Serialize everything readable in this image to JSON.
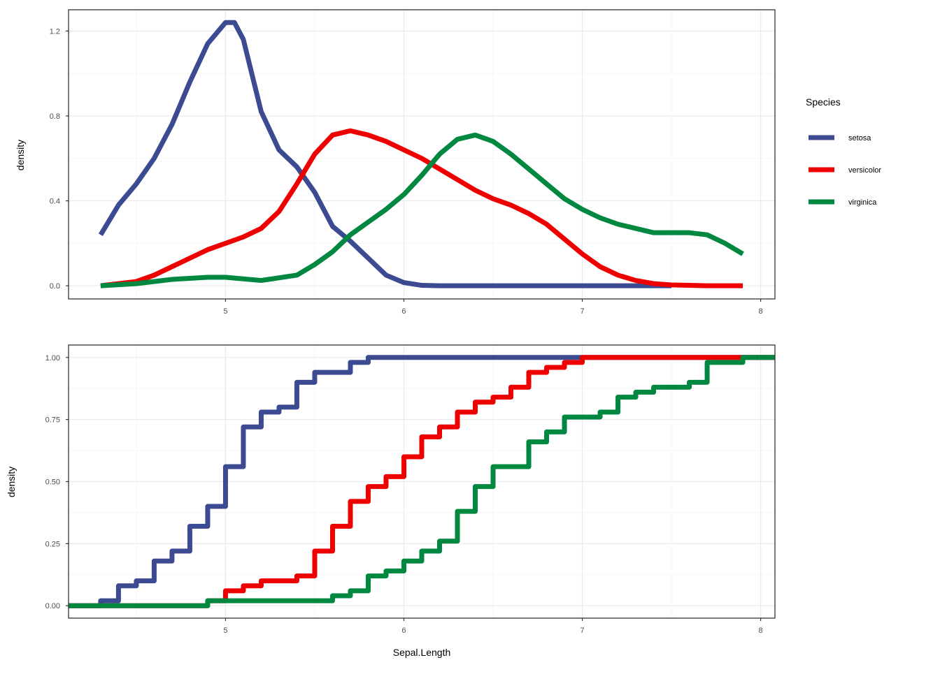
{
  "colors": {
    "setosa": "#3c4b91",
    "versicolor": "#ee0000",
    "virginica": "#008740",
    "grid_major": "#ebebeb",
    "grid_minor": "#f5f5f5",
    "panel_border": "#333333"
  },
  "legend": {
    "title": "Species",
    "position": "right",
    "items": [
      {
        "label": "setosa",
        "color": "#3c4b91"
      },
      {
        "label": "versicolor",
        "color": "#ee0000"
      },
      {
        "label": "virginica",
        "color": "#008740"
      }
    ]
  },
  "chart_data": [
    {
      "type": "line",
      "title": "",
      "xlabel": "",
      "ylabel": "density",
      "xlim": [
        4.12,
        8.08
      ],
      "ylim": [
        -0.062,
        1.3
      ],
      "x_ticks": [
        5,
        6,
        7,
        8
      ],
      "x_tick_labels": [
        "5",
        "6",
        "7",
        "8"
      ],
      "y_ticks": [
        0,
        0.4,
        0.8,
        1.2
      ],
      "y_tick_labels": [
        "0.0",
        "0.4",
        "0.8",
        "1.2"
      ],
      "grid": true,
      "series": [
        {
          "name": "setosa",
          "x": [
            4.3,
            4.4,
            4.5,
            4.6,
            4.7,
            4.8,
            4.9,
            5.0,
            5.05,
            5.1,
            5.2,
            5.3,
            5.4,
            5.5,
            5.6,
            5.7,
            5.8,
            5.9,
            6.0,
            6.1,
            6.2,
            7.0,
            7.5
          ],
          "y": [
            0.24,
            0.38,
            0.48,
            0.6,
            0.76,
            0.96,
            1.14,
            1.24,
            1.24,
            1.16,
            0.82,
            0.64,
            0.56,
            0.44,
            0.28,
            0.21,
            0.13,
            0.05,
            0.015,
            0.002,
            0.0,
            0.0,
            0.0
          ]
        },
        {
          "name": "versicolor",
          "x": [
            4.3,
            4.5,
            4.6,
            4.7,
            4.8,
            4.9,
            5.0,
            5.1,
            5.2,
            5.3,
            5.4,
            5.5,
            5.6,
            5.7,
            5.8,
            5.9,
            6.0,
            6.1,
            6.2,
            6.3,
            6.4,
            6.5,
            6.6,
            6.7,
            6.8,
            6.9,
            7.0,
            7.1,
            7.2,
            7.3,
            7.4,
            7.5,
            7.6,
            7.7,
            7.8,
            7.9
          ],
          "y": [
            0.0,
            0.02,
            0.05,
            0.09,
            0.13,
            0.17,
            0.2,
            0.23,
            0.27,
            0.35,
            0.48,
            0.62,
            0.71,
            0.73,
            0.71,
            0.68,
            0.64,
            0.6,
            0.55,
            0.5,
            0.45,
            0.41,
            0.38,
            0.34,
            0.29,
            0.22,
            0.15,
            0.09,
            0.05,
            0.025,
            0.01,
            0.004,
            0.002,
            0.0,
            0.0,
            0.0
          ]
        },
        {
          "name": "virginica",
          "x": [
            4.3,
            4.5,
            4.7,
            4.9,
            5.0,
            5.2,
            5.4,
            5.5,
            5.6,
            5.7,
            5.8,
            5.9,
            6.0,
            6.1,
            6.2,
            6.3,
            6.4,
            6.5,
            6.6,
            6.7,
            6.8,
            6.9,
            7.0,
            7.1,
            7.2,
            7.3,
            7.4,
            7.5,
            7.6,
            7.7,
            7.8,
            7.9
          ],
          "y": [
            0.0,
            0.01,
            0.03,
            0.04,
            0.04,
            0.025,
            0.05,
            0.1,
            0.16,
            0.24,
            0.3,
            0.36,
            0.43,
            0.52,
            0.62,
            0.69,
            0.71,
            0.68,
            0.62,
            0.55,
            0.48,
            0.41,
            0.36,
            0.32,
            0.29,
            0.27,
            0.25,
            0.25,
            0.25,
            0.24,
            0.2,
            0.15
          ]
        }
      ]
    },
    {
      "type": "line",
      "title": "",
      "xlabel": "Sepal.Length",
      "ylabel": "density",
      "xlim": [
        4.12,
        8.08
      ],
      "ylim": [
        -0.05,
        1.05
      ],
      "x_ticks": [
        5,
        6,
        7,
        8
      ],
      "x_tick_labels": [
        "5",
        "6",
        "7",
        "8"
      ],
      "y_ticks": [
        0,
        0.25,
        0.5,
        0.75,
        1.0
      ],
      "y_tick_labels": [
        "0.00",
        "0.25",
        "0.50",
        "0.75",
        "1.00"
      ],
      "grid": true,
      "step": true,
      "series": [
        {
          "name": "setosa",
          "x": [
            4.12,
            4.3,
            4.4,
            4.5,
            4.6,
            4.7,
            4.8,
            4.9,
            5.0,
            5.1,
            5.2,
            5.3,
            5.4,
            5.5,
            5.7,
            5.8,
            8.08
          ],
          "y": [
            0.0,
            0.02,
            0.08,
            0.1,
            0.18,
            0.22,
            0.32,
            0.4,
            0.56,
            0.72,
            0.78,
            0.8,
            0.9,
            0.94,
            0.98,
            1.0,
            1.0
          ]
        },
        {
          "name": "versicolor",
          "x": [
            4.12,
            4.9,
            5.0,
            5.1,
            5.2,
            5.4,
            5.5,
            5.6,
            5.7,
            5.8,
            5.9,
            6.0,
            6.1,
            6.2,
            6.3,
            6.4,
            6.5,
            6.6,
            6.7,
            6.8,
            6.9,
            7.0,
            8.08
          ],
          "y": [
            0.0,
            0.02,
            0.06,
            0.08,
            0.1,
            0.12,
            0.22,
            0.32,
            0.42,
            0.48,
            0.52,
            0.6,
            0.68,
            0.72,
            0.78,
            0.82,
            0.84,
            0.88,
            0.94,
            0.96,
            0.98,
            1.0,
            1.0
          ]
        },
        {
          "name": "virginica",
          "x": [
            4.12,
            4.9,
            5.6,
            5.7,
            5.8,
            5.9,
            6.0,
            6.1,
            6.2,
            6.3,
            6.4,
            6.5,
            6.7,
            6.8,
            6.9,
            7.1,
            7.2,
            7.3,
            7.4,
            7.6,
            7.7,
            7.9,
            8.08
          ],
          "y": [
            0.0,
            0.02,
            0.04,
            0.06,
            0.12,
            0.14,
            0.18,
            0.22,
            0.26,
            0.38,
            0.48,
            0.56,
            0.66,
            0.7,
            0.76,
            0.78,
            0.84,
            0.86,
            0.88,
            0.9,
            0.98,
            1.0,
            1.0
          ]
        }
      ]
    }
  ]
}
